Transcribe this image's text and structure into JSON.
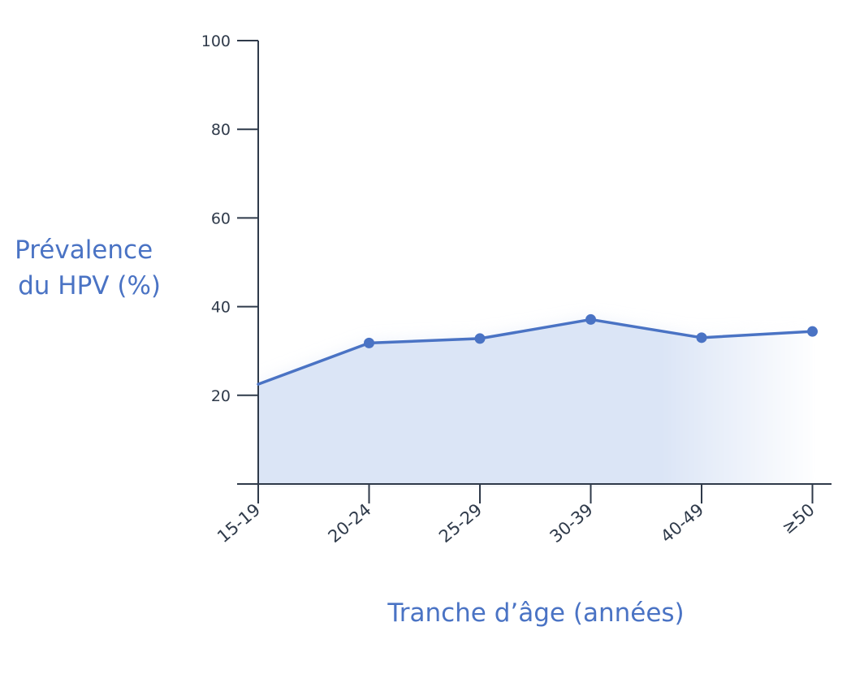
{
  "chart_data": {
    "type": "area",
    "title": "",
    "xlabel": "Tranche d’âge (années)",
    "ylabel": [
      "Prévalence",
      "du HPV (%)"
    ],
    "categories": [
      "15-19",
      "20-24",
      "25-29",
      "30-39",
      "40-49",
      "≥50"
    ],
    "series": [
      {
        "values": [
          22.5,
          31.8,
          32.8,
          37.1,
          33.0,
          34.4
        ]
      }
    ],
    "yticks": [
      20,
      40,
      60,
      80,
      100
    ],
    "ylim": [
      0,
      100
    ],
    "grid": false,
    "line_color": "#4a73c4",
    "fill_color": "#dbe5f6",
    "title_color": "#4a73c4",
    "axis_color": "#2f3a4a"
  }
}
